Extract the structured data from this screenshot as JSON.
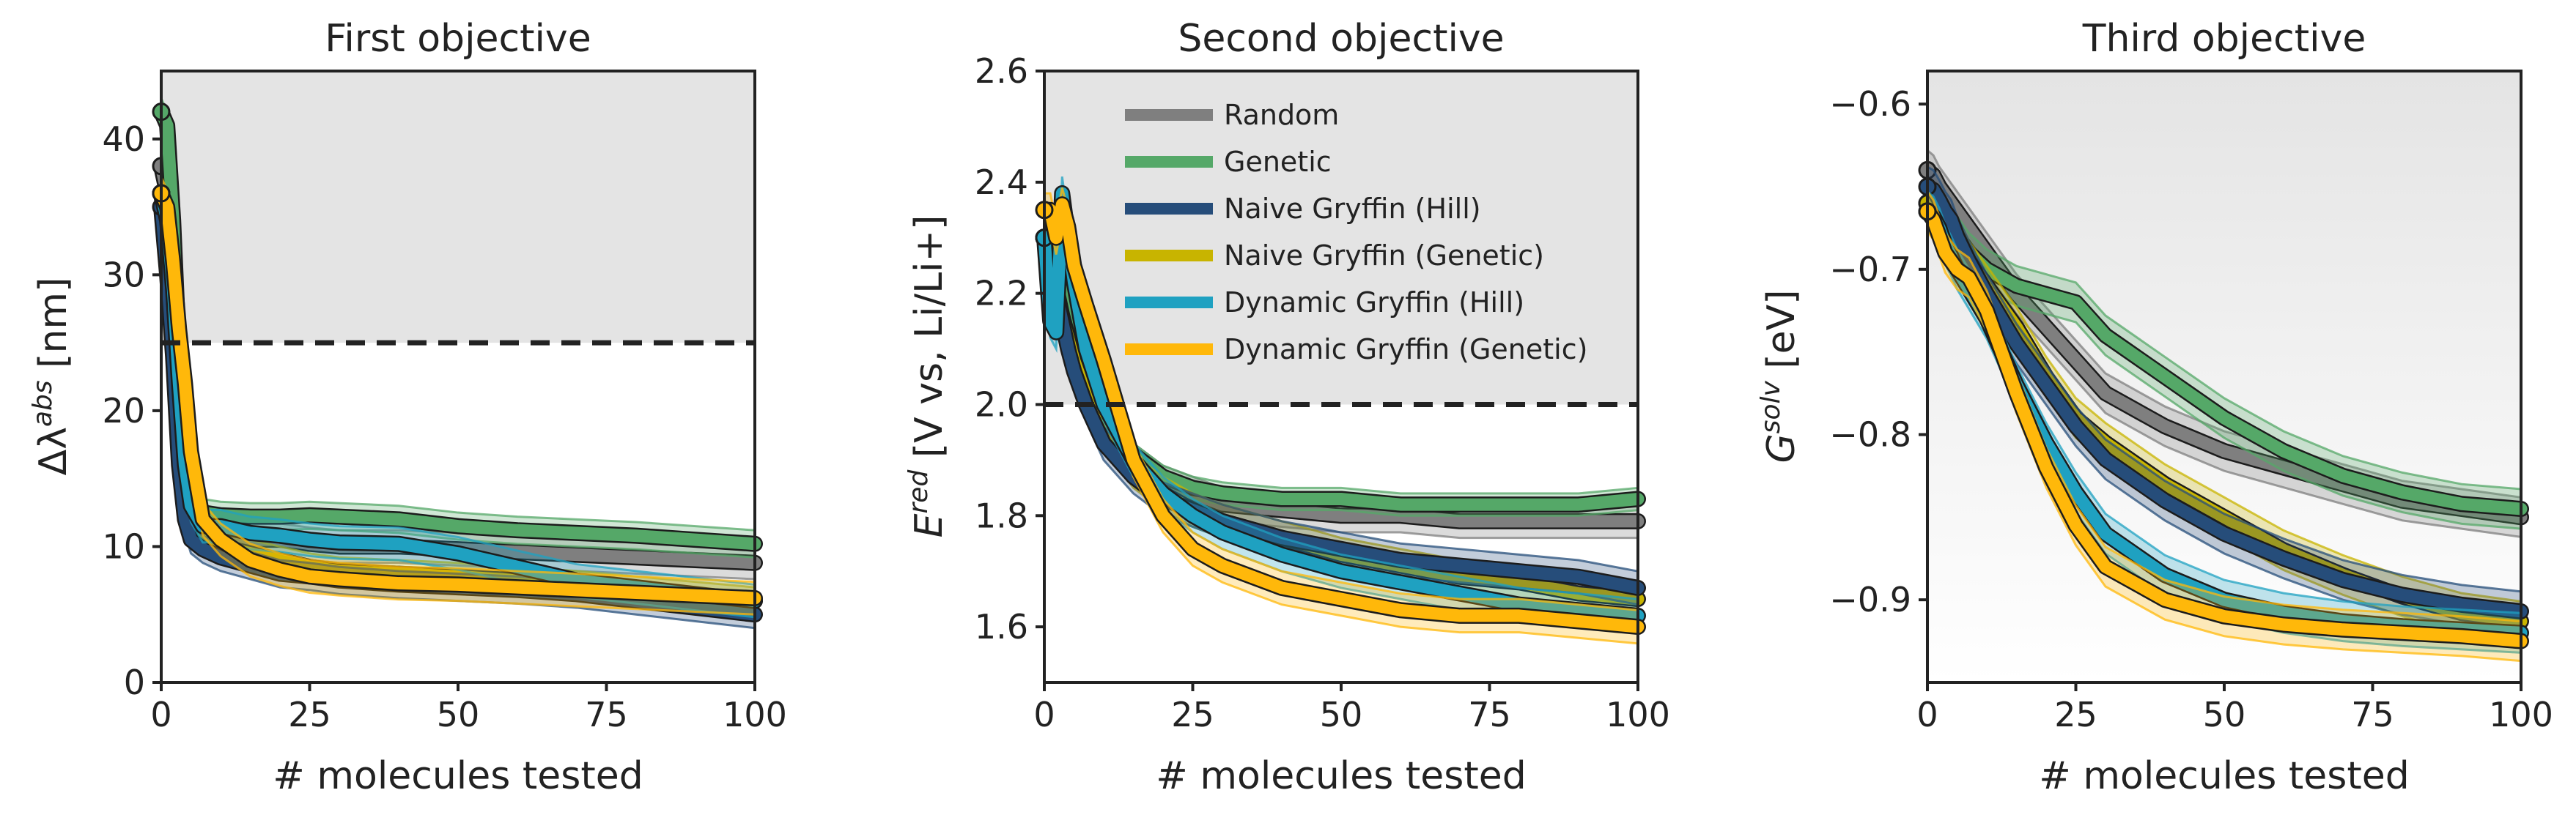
{
  "colors": {
    "Random": "#7f7f7f",
    "Genetic": "#55a868",
    "Naive Gryffin (Hill)": "#264d7a",
    "Naive Gryffin (Genetic)": "#c8b400",
    "Dynamic Gryffin (Hill)": "#1fa1c1",
    "Dynamic Gryffin (Genetic)": "#ffb80a",
    "threshold_line": "#222222",
    "shaded_region": "#e4e4e4"
  },
  "legend": {
    "placement": "upper-left of Second objective panel",
    "entries": [
      "Random",
      "Genetic",
      "Naive Gryffin (Hill)",
      "Naive Gryffin (Genetic)",
      "Dynamic Gryffin (Hill)",
      "Dynamic Gryffin (Genetic)"
    ]
  },
  "chart_data": [
    {
      "type": "line",
      "title": "First objective",
      "xlabel": "# molecules tested",
      "ylabel": "Δλ^abs [nm]",
      "xlim": [
        0,
        100
      ],
      "ylim": [
        0,
        45
      ],
      "xticks": [
        "0",
        "25",
        "50",
        "75",
        "100"
      ],
      "yticks": [
        "0",
        "10",
        "20",
        "30",
        "40"
      ],
      "xtick_values": [
        0,
        25,
        50,
        75,
        100
      ],
      "ytick_values": [
        0,
        10,
        20,
        30,
        40
      ],
      "threshold": 25,
      "shaded": "above threshold",
      "x": [
        0,
        1,
        2,
        3,
        4,
        5,
        7,
        10,
        15,
        20,
        25,
        30,
        40,
        50,
        60,
        70,
        80,
        90,
        100
      ],
      "series": [
        {
          "name": "Random",
          "values": [
            38,
            36,
            29,
            20,
            15,
            13,
            11.5,
            10.5,
            10.5,
            10.5,
            10.2,
            10.0,
            10.0,
            9.8,
            9.6,
            9.4,
            9.2,
            9.0,
            8.8
          ],
          "band": 1.2
        },
        {
          "name": "Genetic",
          "values": [
            42,
            41,
            34,
            24,
            17,
            14,
            12.5,
            12.3,
            12.2,
            12.2,
            12.3,
            12.2,
            12.0,
            11.5,
            11.2,
            11.0,
            10.8,
            10.5,
            10.2
          ],
          "band": 1.0
        },
        {
          "name": "Naive Gryffin (Hill)",
          "values": [
            35,
            30,
            24,
            16,
            12,
            10.5,
            9.8,
            9.2,
            8.6,
            8.0,
            7.8,
            7.5,
            7.2,
            7.0,
            6.8,
            6.5,
            6.0,
            5.5,
            5.0
          ],
          "band": 1.0
        },
        {
          "name": "Naive Gryffin (Genetic)",
          "values": [
            36,
            33,
            27,
            19,
            14,
            12,
            10.5,
            10.0,
            9.5,
            9.0,
            8.5,
            8.2,
            8.0,
            7.8,
            7.5,
            7.2,
            6.8,
            6.4,
            6.0
          ],
          "band": 1.0
        },
        {
          "name": "Dynamic Gryffin (Hill)",
          "values": [
            36,
            34,
            29,
            22,
            16,
            13,
            11.5,
            11.5,
            11.0,
            10.8,
            10.5,
            10.3,
            10.2,
            9.5,
            8.5,
            7.5,
            7.0,
            6.5,
            6.0
          ],
          "band": 1.2
        },
        {
          "name": "Dynamic Gryffin (Genetic)",
          "values": [
            36,
            35,
            31,
            26,
            22,
            17,
            12,
            10.5,
            9.0,
            8.3,
            7.8,
            7.6,
            7.3,
            7.2,
            7.0,
            6.8,
            6.6,
            6.4,
            6.2
          ],
          "band": 1.2
        }
      ]
    },
    {
      "type": "line",
      "title": "Second objective",
      "xlabel": "# molecules tested",
      "ylabel": "E^red [V vs, Li/Li+]",
      "xlim": [
        0,
        100
      ],
      "ylim": [
        1.5,
        2.6
      ],
      "xticks": [
        "0",
        "25",
        "50",
        "75",
        "100"
      ],
      "yticks": [
        "1.6",
        "1.8",
        "2.0",
        "2.2",
        "2.4",
        "2.6"
      ],
      "xtick_values": [
        0,
        25,
        50,
        75,
        100
      ],
      "ytick_values": [
        1.6,
        1.8,
        2.0,
        2.2,
        2.4,
        2.6
      ],
      "threshold": 2.0,
      "shaded": "above threshold",
      "x": [
        0,
        1,
        2,
        3,
        4,
        5,
        7,
        10,
        15,
        20,
        25,
        30,
        40,
        50,
        60,
        70,
        80,
        90,
        100
      ],
      "series": [
        {
          "name": "Random",
          "values": [
            2.3,
            2.28,
            2.22,
            2.18,
            2.14,
            2.1,
            2.04,
            1.97,
            1.9,
            1.86,
            1.84,
            1.82,
            1.81,
            1.8,
            1.8,
            1.79,
            1.79,
            1.79,
            1.79
          ],
          "band": 0.03
        },
        {
          "name": "Genetic",
          "values": [
            2.3,
            2.28,
            2.24,
            2.2,
            2.16,
            2.12,
            2.05,
            1.98,
            1.91,
            1.87,
            1.85,
            1.84,
            1.83,
            1.83,
            1.82,
            1.82,
            1.82,
            1.82,
            1.83
          ],
          "band": 0.02
        },
        {
          "name": "Naive Gryffin (Hill)",
          "values": [
            2.3,
            2.26,
            2.2,
            2.15,
            2.1,
            2.06,
            2.0,
            1.93,
            1.87,
            1.83,
            1.81,
            1.79,
            1.76,
            1.74,
            1.72,
            1.71,
            1.7,
            1.69,
            1.67
          ],
          "band": 0.03
        },
        {
          "name": "Naive Gryffin (Genetic)",
          "values": [
            2.3,
            2.27,
            2.21,
            2.16,
            2.12,
            2.08,
            2.02,
            1.95,
            1.88,
            1.84,
            1.81,
            1.79,
            1.76,
            1.73,
            1.71,
            1.69,
            1.68,
            1.66,
            1.65
          ],
          "band": 0.03
        },
        {
          "name": "Dynamic Gryffin (Hill)",
          "values": [
            2.3,
            2.15,
            2.13,
            2.38,
            2.3,
            2.22,
            2.1,
            2.0,
            1.9,
            1.84,
            1.8,
            1.77,
            1.73,
            1.7,
            1.68,
            1.66,
            1.64,
            1.63,
            1.62
          ],
          "band": 0.03
        },
        {
          "name": "Dynamic Gryffin (Genetic)",
          "values": [
            2.35,
            2.35,
            2.3,
            2.36,
            2.32,
            2.25,
            2.18,
            2.08,
            1.9,
            1.8,
            1.74,
            1.71,
            1.67,
            1.65,
            1.63,
            1.62,
            1.62,
            1.61,
            1.6
          ],
          "band": 0.03
        }
      ]
    },
    {
      "type": "line",
      "title": "Third objective",
      "xlabel": "# molecules tested",
      "ylabel": "G^solv [eV]",
      "xlim": [
        0,
        100
      ],
      "ylim": [
        -0.95,
        -0.58
      ],
      "xticks": [
        "0",
        "25",
        "50",
        "75",
        "100"
      ],
      "yticks": [
        "−0.9",
        "−0.8",
        "−0.7",
        "−0.6"
      ],
      "xtick_values": [
        0,
        25,
        50,
        75,
        100
      ],
      "ytick_values": [
        -0.9,
        -0.8,
        -0.7,
        -0.6
      ],
      "shaded": "gradient",
      "x": [
        0,
        1,
        2,
        3,
        4,
        5,
        7,
        10,
        15,
        20,
        25,
        30,
        40,
        50,
        60,
        70,
        80,
        90,
        100
      ],
      "series": [
        {
          "name": "Random",
          "values": [
            -0.64,
            -0.643,
            -0.65,
            -0.655,
            -0.66,
            -0.665,
            -0.675,
            -0.69,
            -0.715,
            -0.735,
            -0.755,
            -0.775,
            -0.795,
            -0.81,
            -0.82,
            -0.83,
            -0.84,
            -0.845,
            -0.85
          ],
          "band": 0.012
        },
        {
          "name": "Genetic",
          "values": [
            -0.66,
            -0.662,
            -0.668,
            -0.672,
            -0.675,
            -0.68,
            -0.69,
            -0.7,
            -0.71,
            -0.715,
            -0.72,
            -0.74,
            -0.765,
            -0.79,
            -0.81,
            -0.825,
            -0.835,
            -0.842,
            -0.845
          ],
          "band": 0.012
        },
        {
          "name": "Naive Gryffin (Hill)",
          "values": [
            -0.65,
            -0.652,
            -0.658,
            -0.665,
            -0.67,
            -0.68,
            -0.695,
            -0.715,
            -0.745,
            -0.77,
            -0.795,
            -0.815,
            -0.84,
            -0.86,
            -0.875,
            -0.888,
            -0.897,
            -0.903,
            -0.907
          ],
          "band": 0.012
        },
        {
          "name": "Naive Gryffin (Genetic)",
          "values": [
            -0.66,
            -0.662,
            -0.668,
            -0.672,
            -0.676,
            -0.682,
            -0.695,
            -0.71,
            -0.735,
            -0.765,
            -0.79,
            -0.805,
            -0.83,
            -0.85,
            -0.87,
            -0.885,
            -0.898,
            -0.908,
            -0.913
          ],
          "band": 0.012
        },
        {
          "name": "Dynamic Gryffin (Hill)",
          "values": [
            -0.665,
            -0.668,
            -0.675,
            -0.685,
            -0.692,
            -0.7,
            -0.712,
            -0.73,
            -0.77,
            -0.805,
            -0.835,
            -0.86,
            -0.885,
            -0.9,
            -0.908,
            -0.913,
            -0.916,
            -0.918,
            -0.92
          ],
          "band": 0.012
        },
        {
          "name": "Dynamic Gryffin (Genetic)",
          "values": [
            -0.665,
            -0.67,
            -0.68,
            -0.69,
            -0.695,
            -0.7,
            -0.705,
            -0.725,
            -0.775,
            -0.82,
            -0.855,
            -0.88,
            -0.9,
            -0.91,
            -0.915,
            -0.918,
            -0.92,
            -0.922,
            -0.925
          ],
          "band": 0.012
        }
      ]
    }
  ]
}
